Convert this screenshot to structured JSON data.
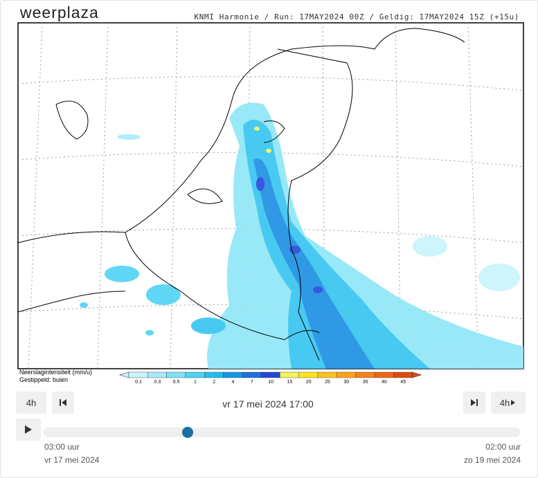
{
  "header": {
    "logo": "weerplaza",
    "run_info": "KNMI Harmonie / Run: 17MAY2024 00Z / Geldig: 17MAY2024 15Z (+15u)"
  },
  "legend": {
    "title": "Neerslagintensiteit (mm/u)",
    "subtitle": "Gestippeld: buien",
    "stops": [
      {
        "label": "0.1",
        "color": "#c8f4fb"
      },
      {
        "label": "0.3",
        "color": "#a6ecf8"
      },
      {
        "label": "0.5",
        "color": "#7fe2f6"
      },
      {
        "label": "1",
        "color": "#4fd3f3"
      },
      {
        "label": "2",
        "color": "#22bdee"
      },
      {
        "label": "4",
        "color": "#1797e6"
      },
      {
        "label": "7",
        "color": "#1e6fe0"
      },
      {
        "label": "10",
        "color": "#2447d8"
      },
      {
        "label": "15",
        "color": "#f4f45a"
      },
      {
        "label": "20",
        "color": "#ffe31c"
      },
      {
        "label": "25",
        "color": "#ffc21c"
      },
      {
        "label": "30",
        "color": "#ffa21a"
      },
      {
        "label": "35",
        "color": "#f9811a"
      },
      {
        "label": "40",
        "color": "#ef6515"
      },
      {
        "label": "45",
        "color": "#e04a10"
      }
    ]
  },
  "controls": {
    "back_step": "4h",
    "current_time": "vr 17 mei 2024 17:00",
    "forward_step": "4h",
    "start_time": "03:00 uur",
    "end_time": "02:00 uur",
    "start_date": "vr 17 mei 2024",
    "end_date": "zo 19 mei 2024"
  }
}
